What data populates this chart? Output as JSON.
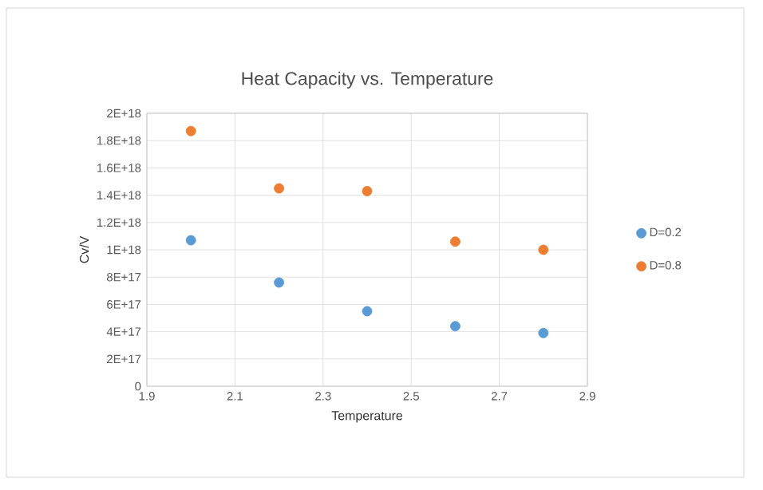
{
  "chart_data": {
    "type": "scatter",
    "title": "Heat Capacity vs. Temperature",
    "xlabel": "Temperature",
    "ylabel": "Cv/V",
    "x": [
      2.0,
      2.2,
      2.4,
      2.6,
      2.8
    ],
    "series": [
      {
        "name": "D=0.2",
        "color": "#5b9bd5",
        "values": [
          1.07e+18,
          7.6e+17,
          5.5e+17,
          4.4e+17,
          3.9e+17
        ]
      },
      {
        "name": "D=0.8",
        "color": "#ed7d31",
        "values": [
          1.87e+18,
          1.45e+18,
          1.43e+18,
          1.06e+18,
          1e+18
        ]
      }
    ],
    "xlim": [
      1.9,
      2.9
    ],
    "xticks": [
      1.9,
      2.1,
      2.3,
      2.5,
      2.7,
      2.9
    ],
    "ylim": [
      0,
      2e+18
    ],
    "yticks": [
      0,
      {
        "value": 2e+17,
        "label": "2E+17"
      },
      {
        "value": 4e+17,
        "label": "4E+17"
      },
      {
        "value": 6e+17,
        "label": "6E+17"
      },
      {
        "value": 8e+17,
        "label": "8E+17"
      },
      {
        "value": 1e+18,
        "label": "1E+18"
      },
      {
        "value": 1.2e+18,
        "label": "1.2E+18"
      },
      {
        "value": 1.4e+18,
        "label": "1.4E+18"
      },
      {
        "value": 1.6e+18,
        "label": "1.6E+18"
      },
      {
        "value": 1.8e+18,
        "label": "1.8E+18"
      },
      {
        "value": 2e+18,
        "label": "2E+18"
      }
    ],
    "grid": true,
    "legend": "right"
  }
}
